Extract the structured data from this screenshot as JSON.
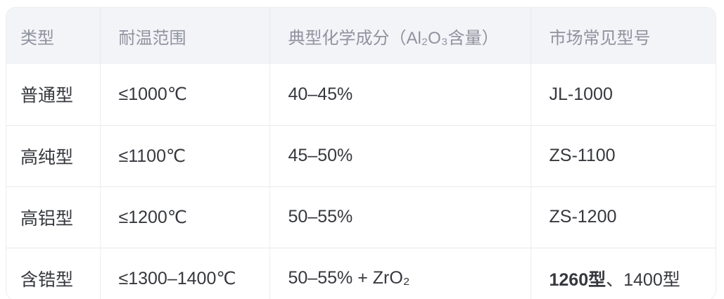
{
  "table": {
    "style": {
      "header_bg": "#f3f4f8",
      "header_text_color": "#8f939e",
      "body_text_color": "#36383d",
      "row_divider_color": "#e9e9e9",
      "column_divider_color": "#ededf1",
      "card_border_color": "#ededf1",
      "card_bg": "#ffffff"
    },
    "columns": [
      {
        "label": "类型"
      },
      {
        "label": "耐温范围"
      },
      {
        "label": "典型化学成分（Al₂O₃含量）"
      },
      {
        "label": "市场常见型号"
      }
    ],
    "rows": [
      {
        "type": "普通型",
        "temp_range": "≤1000℃",
        "composition": "40–45%",
        "models": [
          {
            "text": "JL-1000",
            "bold": false
          }
        ]
      },
      {
        "type": "高纯型",
        "temp_range": "≤1100℃",
        "composition": "45–50%",
        "models": [
          {
            "text": "ZS-1100",
            "bold": false
          }
        ]
      },
      {
        "type": "高铝型",
        "temp_range": "≤1200℃",
        "composition": "50–55%",
        "models": [
          {
            "text": "ZS-1200",
            "bold": false
          }
        ]
      },
      {
        "type": "含锆型",
        "temp_range": "≤1300–1400℃",
        "composition": "50–55% + ZrO₂",
        "models": [
          {
            "text": "1260型",
            "bold": true
          },
          {
            "text": "、1400型",
            "bold": false
          }
        ]
      }
    ]
  }
}
